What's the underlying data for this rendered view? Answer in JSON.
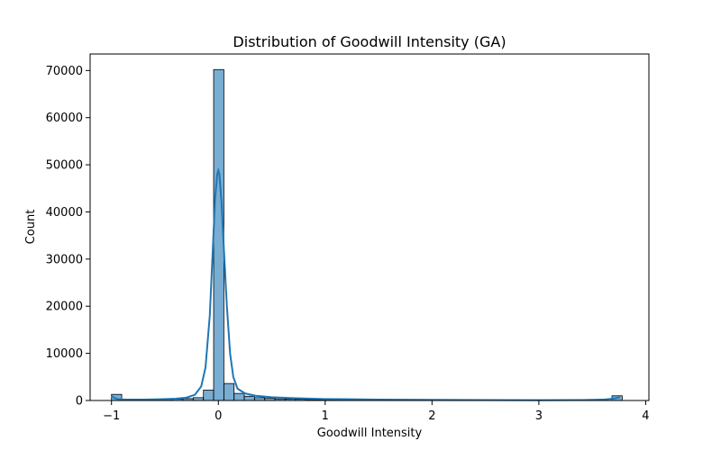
{
  "chart_data": {
    "type": "bar",
    "title": "Distribution of Goodwill Intensity (GA)",
    "xlabel": "Goodwill Intensity",
    "ylabel": "Count",
    "xlim": [
      -1.2,
      4.03
    ],
    "ylim": [
      0,
      73500
    ],
    "xticks": [
      -1,
      0,
      1,
      2,
      3,
      4
    ],
    "yticks": [
      0,
      10000,
      20000,
      30000,
      40000,
      50000,
      60000,
      70000
    ],
    "grid": false,
    "legend": "none",
    "bar_color": "#1f77b4",
    "bar_alpha": 0.6,
    "bin_width": 0.0956,
    "bins": [
      {
        "x0": -1.0,
        "count": 1300
      },
      {
        "x0": -0.9044,
        "count": 200
      },
      {
        "x0": -0.8088,
        "count": 150
      },
      {
        "x0": -0.7132,
        "count": 150
      },
      {
        "x0": -0.6176,
        "count": 200
      },
      {
        "x0": -0.522,
        "count": 250
      },
      {
        "x0": -0.4264,
        "count": 300
      },
      {
        "x0": -0.3308,
        "count": 400
      },
      {
        "x0": -0.2352,
        "count": 600
      },
      {
        "x0": -0.1396,
        "count": 2200
      },
      {
        "x0": -0.044,
        "count": 70200
      },
      {
        "x0": 0.0516,
        "count": 3600
      },
      {
        "x0": 0.1472,
        "count": 1500
      },
      {
        "x0": 0.2428,
        "count": 900
      },
      {
        "x0": 0.3384,
        "count": 600
      },
      {
        "x0": 0.434,
        "count": 450
      },
      {
        "x0": 0.5296,
        "count": 350
      },
      {
        "x0": 0.6252,
        "count": 300
      },
      {
        "x0": 0.7208,
        "count": 250
      },
      {
        "x0": 0.8164,
        "count": 200
      },
      {
        "x0": 0.912,
        "count": 180
      },
      {
        "x0": 1.0076,
        "count": 160
      },
      {
        "x0": 1.1032,
        "count": 140
      },
      {
        "x0": 1.1988,
        "count": 120
      },
      {
        "x0": 1.2944,
        "count": 110
      },
      {
        "x0": 1.39,
        "count": 100
      },
      {
        "x0": 1.4856,
        "count": 90
      },
      {
        "x0": 1.5812,
        "count": 80
      },
      {
        "x0": 1.6768,
        "count": 75
      },
      {
        "x0": 1.7724,
        "count": 70
      },
      {
        "x0": 1.868,
        "count": 65
      },
      {
        "x0": 1.9636,
        "count": 60
      },
      {
        "x0": 2.0592,
        "count": 55
      },
      {
        "x0": 2.1548,
        "count": 50
      },
      {
        "x0": 2.2504,
        "count": 45
      },
      {
        "x0": 2.346,
        "count": 45
      },
      {
        "x0": 2.4416,
        "count": 40
      },
      {
        "x0": 2.5372,
        "count": 40
      },
      {
        "x0": 2.6328,
        "count": 35
      },
      {
        "x0": 2.7284,
        "count": 35
      },
      {
        "x0": 2.824,
        "count": 30
      },
      {
        "x0": 2.9196,
        "count": 30
      },
      {
        "x0": 3.0152,
        "count": 30
      },
      {
        "x0": 3.1108,
        "count": 25
      },
      {
        "x0": 3.2064,
        "count": 25
      },
      {
        "x0": 3.302,
        "count": 25
      },
      {
        "x0": 3.3976,
        "count": 20
      },
      {
        "x0": 3.4932,
        "count": 20
      },
      {
        "x0": 3.5888,
        "count": 20
      },
      {
        "x0": 3.6844,
        "count": 1000
      }
    ],
    "kde_line": {
      "color": "#1f77b4",
      "points": [
        [
          -1.0,
          900
        ],
        [
          -0.97,
          500
        ],
        [
          -0.93,
          250
        ],
        [
          -0.85,
          180
        ],
        [
          -0.7,
          200
        ],
        [
          -0.55,
          260
        ],
        [
          -0.4,
          380
        ],
        [
          -0.3,
          600
        ],
        [
          -0.22,
          1200
        ],
        [
          -0.16,
          3000
        ],
        [
          -0.12,
          7000
        ],
        [
          -0.08,
          18000
        ],
        [
          -0.05,
          33000
        ],
        [
          -0.03,
          43000
        ],
        [
          -0.01,
          48000
        ],
        [
          0.0,
          48800
        ],
        [
          0.01,
          48000
        ],
        [
          0.03,
          42000
        ],
        [
          0.05,
          33000
        ],
        [
          0.08,
          20000
        ],
        [
          0.11,
          10000
        ],
        [
          0.14,
          5000
        ],
        [
          0.18,
          2500
        ],
        [
          0.25,
          1500
        ],
        [
          0.35,
          1000
        ],
        [
          0.5,
          700
        ],
        [
          0.7,
          500
        ],
        [
          1.0,
          320
        ],
        [
          1.5,
          200
        ],
        [
          2.0,
          140
        ],
        [
          2.5,
          100
        ],
        [
          3.0,
          80
        ],
        [
          3.4,
          90
        ],
        [
          3.6,
          180
        ],
        [
          3.7,
          400
        ],
        [
          3.76,
          700
        ]
      ]
    }
  }
}
